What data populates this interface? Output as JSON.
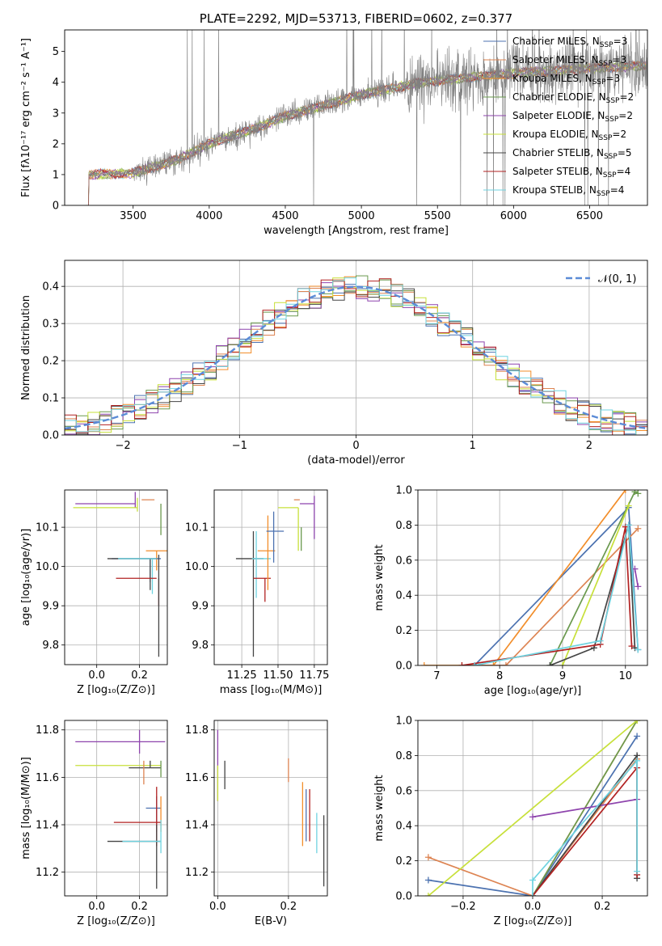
{
  "palette": [
    "#4c72b0",
    "#dd8452",
    "#f28e2b",
    "#6a994e",
    "#8e44ad",
    "#c7e03a",
    "#444444",
    "#b22222",
    "#6fd3e0"
  ],
  "chart_data": [
    {
      "id": "spectrum",
      "type": "line",
      "title": "PLATE=2292, MJD=53713, FIBERID=0602, z=0.377",
      "xlabel": "wavelength [Angstrom, rest frame]",
      "ylabel": "Flux [fλ10⁻¹⁷ erg cm⁻² s⁻¹ A⁻¹]",
      "xlim": [
        3050,
        6880
      ],
      "ylim": [
        0,
        5.7
      ],
      "xticks": [
        3500,
        4000,
        4500,
        5000,
        5500,
        6000,
        6500
      ],
      "yticks": [
        0,
        1,
        2,
        3,
        4,
        5
      ],
      "data_start_x": 3190,
      "trend": {
        "x": [
          3190,
          3210,
          3500,
          3800,
          4000,
          4300,
          4500,
          4800,
          5000,
          5200,
          5400,
          5600,
          5800,
          6000,
          6200,
          6500,
          6880
        ],
        "y": [
          0,
          1.0,
          1.05,
          1.5,
          2.0,
          2.5,
          2.9,
          3.3,
          3.6,
          3.8,
          4.0,
          4.1,
          4.2,
          4.3,
          4.35,
          4.45,
          4.55
        ]
      },
      "legend_position": "top-right",
      "legend": [
        {
          "label": "Chabrier MILES, N",
          "sub": "SSP",
          "value": "=3",
          "color": "#4c72b0"
        },
        {
          "label": "Salpeter MILES, N",
          "sub": "SSP",
          "value": "=3",
          "color": "#dd8452"
        },
        {
          "label": "Kroupa MILES, N",
          "sub": "SSP",
          "value": "=3",
          "color": "#f28e2b"
        },
        {
          "label": "Chabrier ELODIE, N",
          "sub": "SSP",
          "value": "=2",
          "color": "#6a994e"
        },
        {
          "label": "Salpeter ELODIE, N",
          "sub": "SSP",
          "value": "=2",
          "color": "#8e44ad"
        },
        {
          "label": "Kroupa ELODIE, N",
          "sub": "SSP",
          "value": "=2",
          "color": "#c7e03a"
        },
        {
          "label": "Chabrier STELIB, N",
          "sub": "SSP",
          "value": "=5",
          "color": "#444444"
        },
        {
          "label": "Salpeter STELIB, N",
          "sub": "SSP",
          "value": "=4",
          "color": "#b22222"
        },
        {
          "label": "Kroupa STELIB, N",
          "sub": "SSP",
          "value": "=4",
          "color": "#6fd3e0"
        }
      ]
    },
    {
      "id": "residuals",
      "type": "line",
      "xlabel": "(data-model)/error",
      "ylabel": "Normed distribution",
      "xlim": [
        -2.5,
        2.5
      ],
      "ylim": [
        0,
        0.47
      ],
      "xticks": [
        -2,
        -1,
        0,
        1,
        2
      ],
      "yticks": [
        0.0,
        0.1,
        0.2,
        0.3,
        0.4
      ],
      "legend_label": "𝒩(0, 1)",
      "legend_position": "top-right",
      "bin_width": 0.1
    },
    {
      "id": "age_vs_Z",
      "type": "scatter",
      "xlabel": "Z [log₁₀(Z/Z⊙)]",
      "ylabel": "age  [log₁₀(age/yr)]",
      "xlim": [
        -0.15,
        0.33
      ],
      "ylim": [
        9.75,
        10.195
      ],
      "xticks": [
        0.0,
        0.2
      ],
      "yticks": [
        9.8,
        9.9,
        10.0,
        10.1
      ],
      "points": [
        {
          "x": 0.18,
          "y": 10.16,
          "xe": [
            0.28,
            0.0
          ],
          "ye": [
            0.01,
            0.03
          ],
          "c": 4
        },
        {
          "x": 0.19,
          "y": 10.15,
          "xe": [
            0.3,
            0.0
          ],
          "ye": [
            0.01,
            0.025
          ],
          "c": 5
        },
        {
          "x": 0.27,
          "y": 10.17,
          "xe": [
            0.06,
            0.0
          ],
          "ye": [
            0.0,
            0.0
          ],
          "c": 1
        },
        {
          "x": 0.28,
          "y": 10.04,
          "xe": [
            0.05,
            0.05
          ],
          "ye": [
            0.05,
            0.0
          ],
          "c": 2
        },
        {
          "x": 0.25,
          "y": 10.02,
          "xe": [
            0.18,
            0.05
          ],
          "ye": [
            0.06,
            0.0
          ],
          "c": 0
        },
        {
          "x": 0.25,
          "y": 10.02,
          "xe": [
            0.2,
            0.03
          ],
          "ye": [
            0.08,
            0.0
          ],
          "c": 6
        },
        {
          "x": 0.26,
          "y": 10.02,
          "xe": [
            0.16,
            0.02
          ],
          "ye": [
            0.09,
            0.0
          ],
          "c": 8
        },
        {
          "x": 0.26,
          "y": 9.97,
          "xe": [
            0.17,
            0.02
          ],
          "ye": [
            0.0,
            0.0
          ],
          "c": 7
        },
        {
          "x": 0.29,
          "y": 9.97,
          "xe": [
            0.0,
            0.0
          ],
          "ye": [
            0.07,
            0.0
          ],
          "c": 7
        },
        {
          "x": 0.29,
          "y": 9.95,
          "xe": [
            0.0,
            0.0
          ],
          "ye": [
            0.18,
            0.08
          ],
          "c": 6
        },
        {
          "x": 0.3,
          "y": 10.1,
          "xe": [
            0.0,
            0.0
          ],
          "ye": [
            0.02,
            0.06
          ],
          "c": 3
        }
      ]
    },
    {
      "id": "age_vs_mass",
      "type": "scatter",
      "xlabel": "mass [log₁₀(M/M⊙)]",
      "ylabel": "",
      "xlim": [
        11.06,
        11.84
      ],
      "ylim": [
        9.75,
        10.195
      ],
      "xticks": [
        11.25,
        11.5,
        11.75
      ],
      "yticks": [
        9.8,
        9.9,
        10.0,
        10.1
      ],
      "points": [
        {
          "x": 11.33,
          "y": 10.02,
          "xe": [
            0.12,
            0.07
          ],
          "ye": [
            0.25,
            0.07
          ],
          "c": 6
        },
        {
          "x": 11.35,
          "y": 10.02,
          "xe": [
            0.03,
            0.1
          ],
          "ye": [
            0.1,
            0.07
          ],
          "c": 8
        },
        {
          "x": 11.41,
          "y": 9.97,
          "xe": [
            0.08,
            0.04
          ],
          "ye": [
            0.06,
            0.0
          ],
          "c": 7
        },
        {
          "x": 11.43,
          "y": 10.04,
          "xe": [
            0.07,
            0.05
          ],
          "ye": [
            0.1,
            0.09
          ],
          "c": 2
        },
        {
          "x": 11.47,
          "y": 10.09,
          "xe": [
            0.05,
            0.07
          ],
          "ye": [
            0.08,
            0.05
          ],
          "c": 0
        },
        {
          "x": 11.64,
          "y": 10.15,
          "xe": [
            0.14,
            0.0
          ],
          "ye": [
            0.11,
            0.0
          ],
          "c": 5
        },
        {
          "x": 11.75,
          "y": 10.16,
          "xe": [
            0.1,
            0.0
          ],
          "ye": [
            0.09,
            0.02
          ],
          "c": 4
        },
        {
          "x": 11.65,
          "y": 10.17,
          "xe": [
            0.04,
            0.0
          ],
          "ye": [
            0.0,
            0.0
          ],
          "c": 1
        },
        {
          "x": 11.66,
          "y": 10.1,
          "xe": [
            0.0,
            0.0
          ],
          "ye": [
            0.06,
            0.0
          ],
          "c": 3
        }
      ]
    },
    {
      "id": "weight_vs_age",
      "type": "line",
      "xlabel": "age  [log₁₀(age/yr)]",
      "ylabel": "mass weight",
      "xlim": [
        6.7,
        10.35
      ],
      "ylim": [
        0,
        1.0
      ],
      "xticks": [
        7,
        8,
        9,
        10
      ],
      "yticks": [
        0.0,
        0.2,
        0.4,
        0.6,
        0.8,
        1.0
      ],
      "series": [
        {
          "c": 0,
          "x": [
            7.6,
            10.05,
            10.2
          ],
          "y": [
            0.0,
            0.9,
            0.09
          ]
        },
        {
          "c": 2,
          "x": [
            6.8,
            7.9,
            10.0
          ],
          "y": [
            0.0,
            0.0,
            1.0
          ]
        },
        {
          "c": 1,
          "x": [
            7.4,
            8.1,
            10.2
          ],
          "y": [
            0.0,
            0.0,
            0.78
          ]
        },
        {
          "c": 3,
          "x": [
            8.8,
            10.15,
            10.2
          ],
          "y": [
            0.0,
            0.99,
            0.98
          ]
        },
        {
          "c": 4,
          "x": [
            10.15,
            10.2
          ],
          "y": [
            0.55,
            0.45
          ]
        },
        {
          "c": 5,
          "x": [
            9.0,
            10.05
          ],
          "y": [
            0.0,
            0.91
          ]
        },
        {
          "c": 6,
          "x": [
            8.8,
            9.5,
            10.05,
            10.15
          ],
          "y": [
            0.0,
            0.1,
            0.8,
            0.1
          ]
        },
        {
          "c": 7,
          "x": [
            7.4,
            9.6,
            10.0,
            10.1
          ],
          "y": [
            0.0,
            0.12,
            0.79,
            0.11
          ]
        },
        {
          "c": 8,
          "x": [
            7.6,
            9.6,
            10.05,
            10.2
          ],
          "y": [
            0.0,
            0.14,
            0.8,
            0.09
          ]
        }
      ]
    },
    {
      "id": "mass_vs_Z",
      "type": "scatter",
      "xlabel": "Z [log₁₀(Z/Z⊙)]",
      "ylabel": "mass [log₁₀(M/M⊙)]",
      "xlim": [
        -0.15,
        0.33
      ],
      "ylim": [
        11.1,
        11.84
      ],
      "xticks": [
        0.0,
        0.2
      ],
      "yticks": [
        11.2,
        11.4,
        11.6,
        11.8
      ],
      "points": [
        {
          "x": 0.2,
          "y": 11.75,
          "xe": [
            0.3,
            0.12
          ],
          "ye": [
            0.05,
            0.05
          ],
          "c": 4
        },
        {
          "x": 0.2,
          "y": 11.65,
          "xe": [
            0.3,
            0.1
          ],
          "ye": [
            0.0,
            0.0
          ],
          "c": 5
        },
        {
          "x": 0.25,
          "y": 11.64,
          "xe": [
            0.1,
            0.05
          ],
          "ye": [
            0.0,
            0.03
          ],
          "c": 6
        },
        {
          "x": 0.22,
          "y": 11.62,
          "xe": [
            0.0,
            0.0
          ],
          "ye": [
            0.05,
            0.05
          ],
          "c": 1
        },
        {
          "x": 0.3,
          "y": 11.6,
          "xe": [
            0.0,
            0.0
          ],
          "ye": [
            0.0,
            0.07
          ],
          "c": 3
        },
        {
          "x": 0.28,
          "y": 11.47,
          "xe": [
            0.05,
            0.02
          ],
          "ye": [
            0.1,
            0.05
          ],
          "c": 0
        },
        {
          "x": 0.3,
          "y": 11.47,
          "xe": [
            0.0,
            0.0
          ],
          "ye": [
            0.1,
            0.05
          ],
          "c": 2
        },
        {
          "x": 0.28,
          "y": 11.41,
          "xe": [
            0.2,
            0.02
          ],
          "ye": [
            0.1,
            0.15
          ],
          "c": 7
        },
        {
          "x": 0.28,
          "y": 11.33,
          "xe": [
            0.23,
            0.02
          ],
          "ye": [
            0.2,
            0.07
          ],
          "c": 6
        },
        {
          "x": 0.3,
          "y": 11.33,
          "xe": [
            0.18,
            0.0
          ],
          "ye": [
            0.05,
            0.09
          ],
          "c": 8
        }
      ]
    },
    {
      "id": "mass_vs_EBV",
      "type": "scatter",
      "xlabel": "E(B-V)",
      "ylabel": "",
      "xlim": [
        -0.01,
        0.31
      ],
      "ylim": [
        11.1,
        11.84
      ],
      "xticks": [
        0.0,
        0.2
      ],
      "yticks": [
        11.2,
        11.4,
        11.6,
        11.8
      ],
      "points": [
        {
          "x": 0.0,
          "y": 11.65,
          "xe": [
            0.0,
            0.0
          ],
          "ye": [
            0.15,
            0.15
          ],
          "c": 4
        },
        {
          "x": 0.0,
          "y": 11.6,
          "xe": [
            0.0,
            0.0
          ],
          "ye": [
            0.1,
            0.05
          ],
          "c": 5
        },
        {
          "x": 0.02,
          "y": 11.6,
          "xe": [
            0.0,
            0.0
          ],
          "ye": [
            0.05,
            0.07
          ],
          "c": 6
        },
        {
          "x": 0.2,
          "y": 11.63,
          "xe": [
            0.0,
            0.0
          ],
          "ye": [
            0.05,
            0.05
          ],
          "c": 1
        },
        {
          "x": 0.24,
          "y": 11.45,
          "xe": [
            0.0,
            0.0
          ],
          "ye": [
            0.14,
            0.13
          ],
          "c": 2
        },
        {
          "x": 0.25,
          "y": 11.45,
          "xe": [
            0.0,
            0.0
          ],
          "ye": [
            0.12,
            0.1
          ],
          "c": 0
        },
        {
          "x": 0.26,
          "y": 11.42,
          "xe": [
            0.0,
            0.0
          ],
          "ye": [
            0.09,
            0.13
          ],
          "c": 7
        },
        {
          "x": 0.28,
          "y": 11.33,
          "xe": [
            0.0,
            0.0
          ],
          "ye": [
            0.05,
            0.12
          ],
          "c": 8
        },
        {
          "x": 0.3,
          "y": 11.29,
          "xe": [
            0.0,
            0.0
          ],
          "ye": [
            0.15,
            0.15
          ],
          "c": 6
        }
      ]
    },
    {
      "id": "weight_vs_Z",
      "type": "line",
      "xlabel": "Z [log₁₀(Z/Z⊙)]",
      "ylabel": "mass weight",
      "xlim": [
        -0.33,
        0.33
      ],
      "ylim": [
        0,
        1.0
      ],
      "xticks": [
        -0.2,
        0.0,
        0.2
      ],
      "yticks": [
        0.0,
        0.2,
        0.4,
        0.6,
        0.8,
        1.0
      ],
      "series": [
        {
          "c": 0,
          "x": [
            -0.3,
            0.0,
            0.3
          ],
          "y": [
            0.09,
            0.0,
            0.91
          ]
        },
        {
          "c": 1,
          "x": [
            -0.3,
            0.0,
            0.3
          ],
          "y": [
            0.22,
            0.0,
            0.78
          ]
        },
        {
          "c": 2,
          "x": [
            0.0,
            0.3
          ],
          "y": [
            0.0,
            1.0
          ]
        },
        {
          "c": 3,
          "x": [
            0.0,
            0.3
          ],
          "y": [
            0.0,
            1.0
          ]
        },
        {
          "c": 4,
          "x": [
            0.0,
            0.3
          ],
          "y": [
            0.45,
            0.55
          ]
        },
        {
          "c": 5,
          "x": [
            -0.3,
            0.3
          ],
          "y": [
            0.0,
            1.0
          ]
        },
        {
          "c": 6,
          "x": [
            0.0,
            0.3,
            0.3
          ],
          "y": [
            0.0,
            0.8,
            0.1
          ]
        },
        {
          "c": 7,
          "x": [
            0.0,
            0.3,
            0.3
          ],
          "y": [
            0.0,
            0.73,
            0.12
          ]
        },
        {
          "c": 8,
          "x": [
            0.0,
            0.0,
            0.3,
            0.3
          ],
          "y": [
            0.0,
            0.09,
            0.77,
            0.14
          ]
        }
      ]
    }
  ]
}
